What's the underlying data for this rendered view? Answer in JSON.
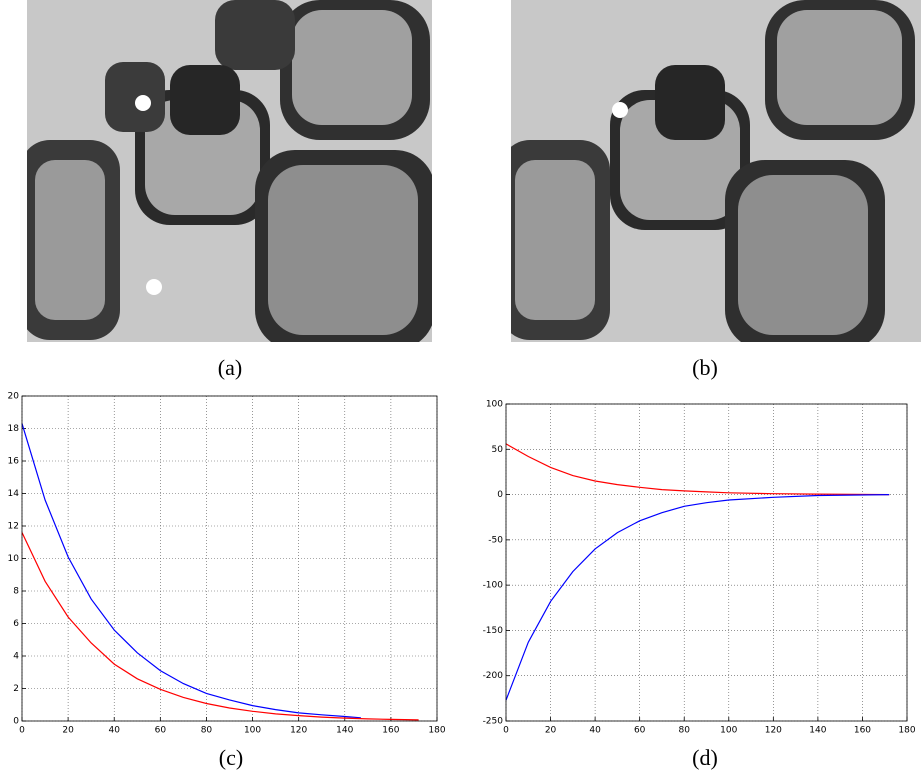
{
  "images": [
    {
      "caption": "(a)"
    },
    {
      "caption": "(b)"
    }
  ],
  "chart_data": [
    {
      "type": "line",
      "caption": "(c)",
      "grid": true,
      "xlim": [
        0,
        180
      ],
      "xticks": [
        0,
        20,
        40,
        60,
        80,
        100,
        120,
        140,
        160,
        180
      ],
      "ylim": [
        0,
        20
      ],
      "yticks": [
        0,
        2,
        4,
        6,
        8,
        10,
        12,
        14,
        16,
        18,
        20
      ],
      "series": [
        {
          "color": "#0000ff",
          "x": [
            0,
            10,
            20,
            30,
            40,
            50,
            60,
            70,
            80,
            90,
            100,
            110,
            120,
            130,
            140,
            147
          ],
          "values": [
            18.3,
            13.6,
            10.1,
            7.5,
            5.6,
            4.2,
            3.1,
            2.3,
            1.7,
            1.3,
            0.95,
            0.7,
            0.5,
            0.38,
            0.28,
            0.2
          ]
        },
        {
          "color": "#ff0000",
          "x": [
            0,
            10,
            20,
            30,
            40,
            50,
            60,
            70,
            80,
            90,
            100,
            110,
            120,
            130,
            140,
            150,
            160,
            172
          ],
          "values": [
            11.6,
            8.6,
            6.4,
            4.8,
            3.5,
            2.6,
            1.95,
            1.45,
            1.08,
            0.8,
            0.6,
            0.44,
            0.33,
            0.24,
            0.18,
            0.13,
            0.1,
            0.07
          ]
        }
      ]
    },
    {
      "type": "line",
      "caption": "(d)",
      "grid": true,
      "xlim": [
        0,
        180
      ],
      "xticks": [
        0,
        20,
        40,
        60,
        80,
        100,
        120,
        140,
        160,
        180
      ],
      "ylim": [
        -250,
        100
      ],
      "yticks": [
        -250,
        -200,
        -150,
        -100,
        -50,
        0,
        50,
        100
      ],
      "series": [
        {
          "color": "#ff0000",
          "x": [
            0,
            10,
            20,
            30,
            40,
            50,
            60,
            70,
            80,
            90,
            100,
            120,
            140,
            172
          ],
          "values": [
            56,
            42,
            30,
            21,
            15,
            11,
            8,
            5.5,
            4,
            3,
            2,
            1,
            0.5,
            0
          ]
        },
        {
          "color": "#0000ff",
          "x": [
            0,
            10,
            20,
            30,
            40,
            50,
            60,
            70,
            80,
            90,
            100,
            120,
            140,
            172
          ],
          "values": [
            -227,
            -163,
            -118,
            -85,
            -60,
            -42,
            -29,
            -20,
            -13,
            -9,
            -6,
            -3,
            -1,
            0
          ]
        }
      ]
    }
  ]
}
